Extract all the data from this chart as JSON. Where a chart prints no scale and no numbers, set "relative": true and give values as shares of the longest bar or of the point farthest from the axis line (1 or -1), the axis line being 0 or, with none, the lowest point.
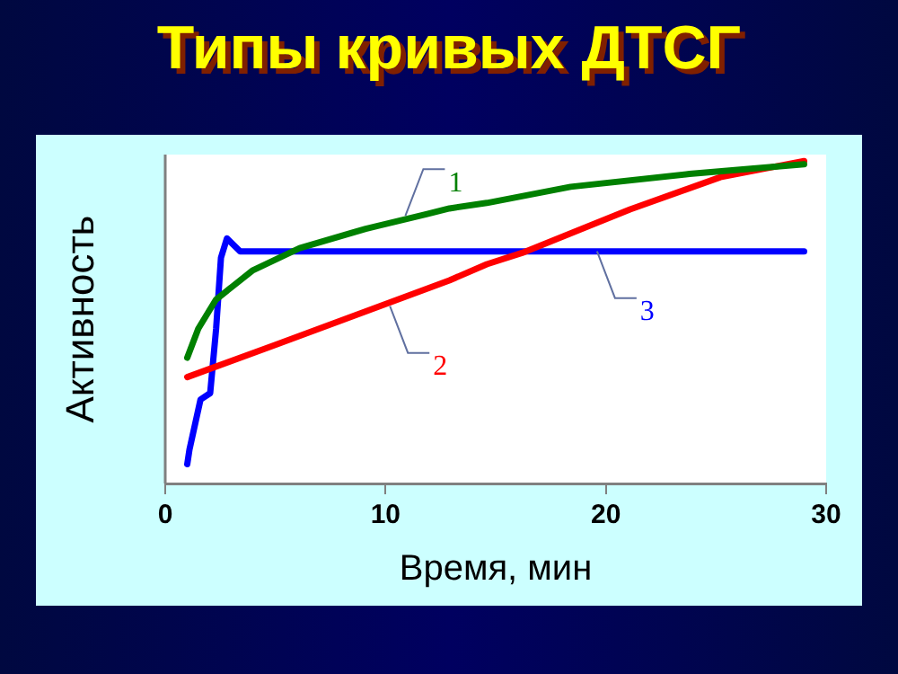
{
  "chart_data": {
    "type": "line",
    "title": "Типы кривых ДТСГ",
    "xlabel": "Время, мин",
    "ylabel": "Активность",
    "relative": true,
    "xlim": [
      0,
      30
    ],
    "xticks": [
      0,
      10,
      20,
      30
    ],
    "grid": false,
    "legend": false,
    "marker": "none",
    "line_style": "solid",
    "series": [
      {
        "color": "#008000",
        "x": [
          1.0,
          1.5,
          2.3,
          3.95,
          6.1,
          9.1,
          11.85,
          12.9,
          14.6,
          18.4,
          23.8,
          29.0
        ],
        "values": [
          0.39,
          0.48,
          0.57,
          0.66,
          0.73,
          0.79,
          0.835,
          0.853,
          0.87,
          0.92,
          0.96,
          0.99
        ]
      },
      {
        "color": "#ff0000",
        "x": [
          1.0,
          5.0,
          12.9,
          14.6,
          16.2,
          21.1,
          25.2,
          29.0
        ],
        "values": [
          0.33,
          0.43,
          0.63,
          0.68,
          0.715,
          0.85,
          0.95,
          1.0
        ]
      },
      {
        "color": "#0000ff",
        "x": [
          1.0,
          1.1,
          1.6,
          2.04,
          2.31,
          2.53,
          2.8,
          3.4,
          29.0
        ],
        "values": [
          0.06,
          0.105,
          0.26,
          0.28,
          0.48,
          0.7,
          0.76,
          0.72,
          0.72
        ]
      }
    ],
    "annotations": [
      {
        "text": "1",
        "x": 10.9,
        "y": 0.83
      },
      {
        "text": "2",
        "x": 10.2,
        "y": 0.55
      },
      {
        "text": "3",
        "x": 19.6,
        "y": 0.72
      }
    ]
  }
}
